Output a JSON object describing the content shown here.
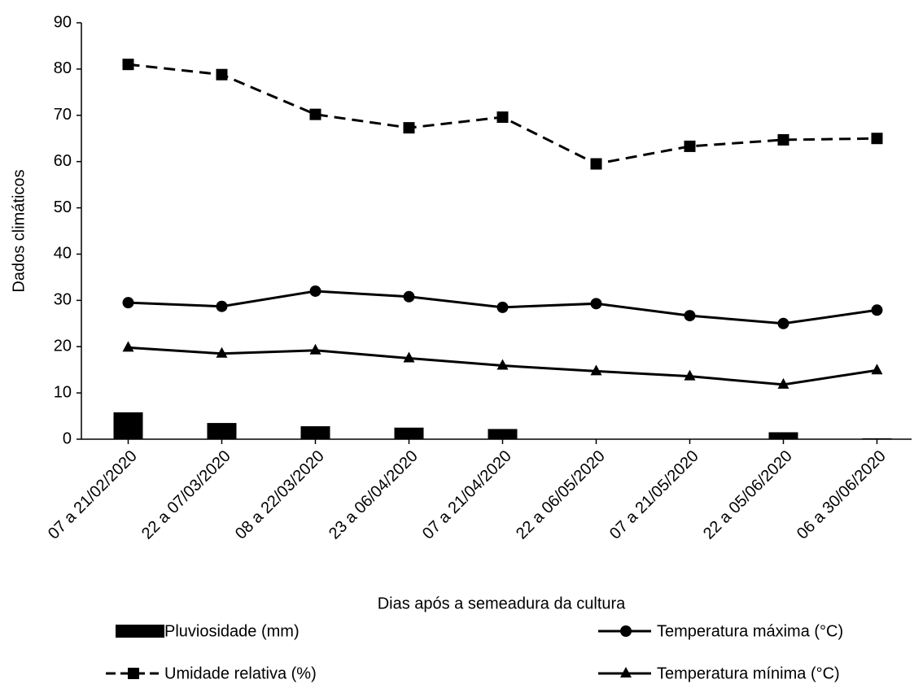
{
  "chart_data": {
    "type": "line",
    "x_label": "Dias após a semeadura da cultura",
    "y_label": "Dados climáticos",
    "categories": [
      "07 a 21/02/2020",
      "22 a 07/03/2020",
      "08 a 22/03/2020",
      "23 a 06/04/2020",
      "07 a 21/04/2020",
      "22 a 06/05/2020",
      "07 a 21/05/2020",
      "22 a 05/06/2020",
      "06 a 30/06/2020"
    ],
    "series": [
      {
        "name": "Pluviosidade (mm)",
        "type": "bar",
        "color": "#000000",
        "values": [
          5.8,
          3.5,
          2.8,
          2.5,
          2.2,
          0,
          0,
          1.5,
          0.2
        ]
      },
      {
        "name": "Temperatura máxima (°C)",
        "type": "line",
        "marker": "circle",
        "style": "solid",
        "color": "#000000",
        "values": [
          29.5,
          28.7,
          32,
          30.8,
          28.5,
          29.3,
          26.7,
          25,
          27.9
        ]
      },
      {
        "name": "Umidade relativa (%)",
        "type": "line",
        "marker": "square",
        "style": "dashed",
        "color": "#000000",
        "values": [
          81,
          78.8,
          70.2,
          67.3,
          69.6,
          59.5,
          63.3,
          64.7,
          65
        ]
      },
      {
        "name": "Temperatura mínima (°C)",
        "type": "line",
        "marker": "triangle",
        "style": "solid",
        "color": "#000000",
        "values": [
          19.8,
          18.5,
          19.2,
          17.5,
          15.9,
          14.7,
          13.6,
          11.8,
          14.9
        ]
      }
    ],
    "ylim": [
      0,
      90
    ],
    "yticks": [
      0,
      10,
      20,
      30,
      40,
      50,
      60,
      70,
      80,
      90
    ],
    "grid": false
  }
}
